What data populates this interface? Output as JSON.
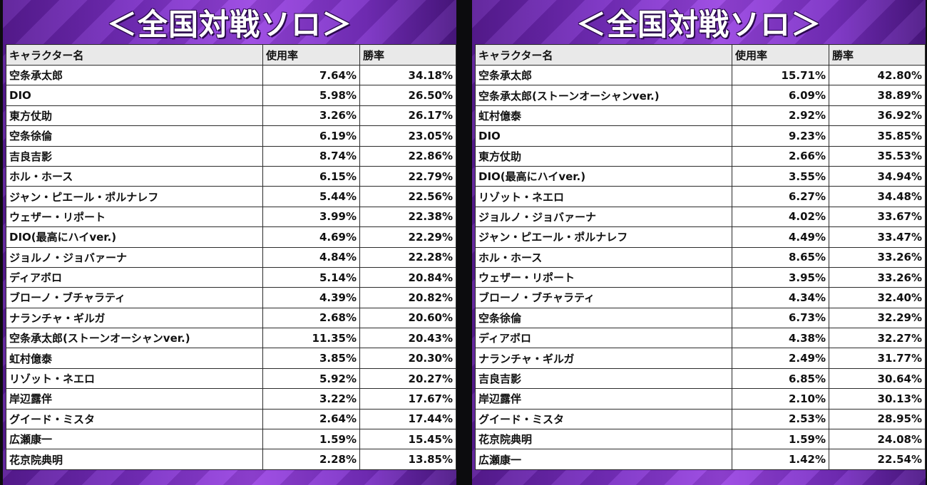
{
  "panels": [
    {
      "title": "＜全国対戦ソロ＞",
      "columns": [
        "キャラクター名",
        "使用率",
        "勝率"
      ],
      "rows": [
        [
          "空条承太郎",
          "7.64%",
          "34.18%"
        ],
        [
          "DIO",
          "5.98%",
          "26.50%"
        ],
        [
          "東方仗助",
          "3.26%",
          "26.17%"
        ],
        [
          "空条徐倫",
          "6.19%",
          "23.05%"
        ],
        [
          "吉良吉影",
          "8.74%",
          "22.86%"
        ],
        [
          "ホル・ホース",
          "6.15%",
          "22.79%"
        ],
        [
          "ジャン・ピエール・ポルナレフ",
          "5.44%",
          "22.56%"
        ],
        [
          "ウェザー・リポート",
          "3.99%",
          "22.38%"
        ],
        [
          "DIO(最高にハイver.)",
          "4.69%",
          "22.29%"
        ],
        [
          "ジョルノ・ジョバァーナ",
          "4.84%",
          "22.28%"
        ],
        [
          "ディアボロ",
          "5.14%",
          "20.84%"
        ],
        [
          "ブローノ・ブチャラティ",
          "4.39%",
          "20.82%"
        ],
        [
          "ナランチャ・ギルガ",
          "2.68%",
          "20.60%"
        ],
        [
          "空条承太郎(ストーンオーシャンver.)",
          "11.35%",
          "20.43%"
        ],
        [
          "虹村億泰",
          "3.85%",
          "20.30%"
        ],
        [
          "リゾット・ネエロ",
          "5.92%",
          "20.27%"
        ],
        [
          "岸辺露伴",
          "3.22%",
          "17.67%"
        ],
        [
          "グイード・ミスタ",
          "2.64%",
          "17.44%"
        ],
        [
          "広瀬康一",
          "1.59%",
          "15.45%"
        ],
        [
          "花京院典明",
          "2.28%",
          "13.85%"
        ]
      ]
    },
    {
      "title": "＜全国対戦ソロ＞",
      "columns": [
        "キャラクター名",
        "使用率",
        "勝率"
      ],
      "rows": [
        [
          "空条承太郎",
          "15.71%",
          "42.80%"
        ],
        [
          "空条承太郎(ストーンオーシャンver.)",
          "6.09%",
          "38.89%"
        ],
        [
          "虹村億泰",
          "2.92%",
          "36.92%"
        ],
        [
          "DIO",
          "9.23%",
          "35.85%"
        ],
        [
          "東方仗助",
          "2.66%",
          "35.53%"
        ],
        [
          "DIO(最高にハイver.)",
          "3.55%",
          "34.94%"
        ],
        [
          "リゾット・ネエロ",
          "6.27%",
          "34.48%"
        ],
        [
          "ジョルノ・ジョバァーナ",
          "4.02%",
          "33.67%"
        ],
        [
          "ジャン・ピエール・ポルナレフ",
          "4.49%",
          "33.47%"
        ],
        [
          "ホル・ホース",
          "8.65%",
          "33.26%"
        ],
        [
          "ウェザー・リポート",
          "3.95%",
          "33.26%"
        ],
        [
          "ブローノ・ブチャラティ",
          "4.34%",
          "32.40%"
        ],
        [
          "空条徐倫",
          "6.73%",
          "32.29%"
        ],
        [
          "ディアボロ",
          "4.38%",
          "32.27%"
        ],
        [
          "ナランチャ・ギルガ",
          "2.49%",
          "31.77%"
        ],
        [
          "吉良吉影",
          "6.85%",
          "30.64%"
        ],
        [
          "岸辺露伴",
          "2.10%",
          "30.13%"
        ],
        [
          "グイード・ミスタ",
          "2.53%",
          "28.95%"
        ],
        [
          "花京院典明",
          "1.59%",
          "24.08%"
        ],
        [
          "広瀬康一",
          "1.42%",
          "22.54%"
        ]
      ]
    }
  ]
}
